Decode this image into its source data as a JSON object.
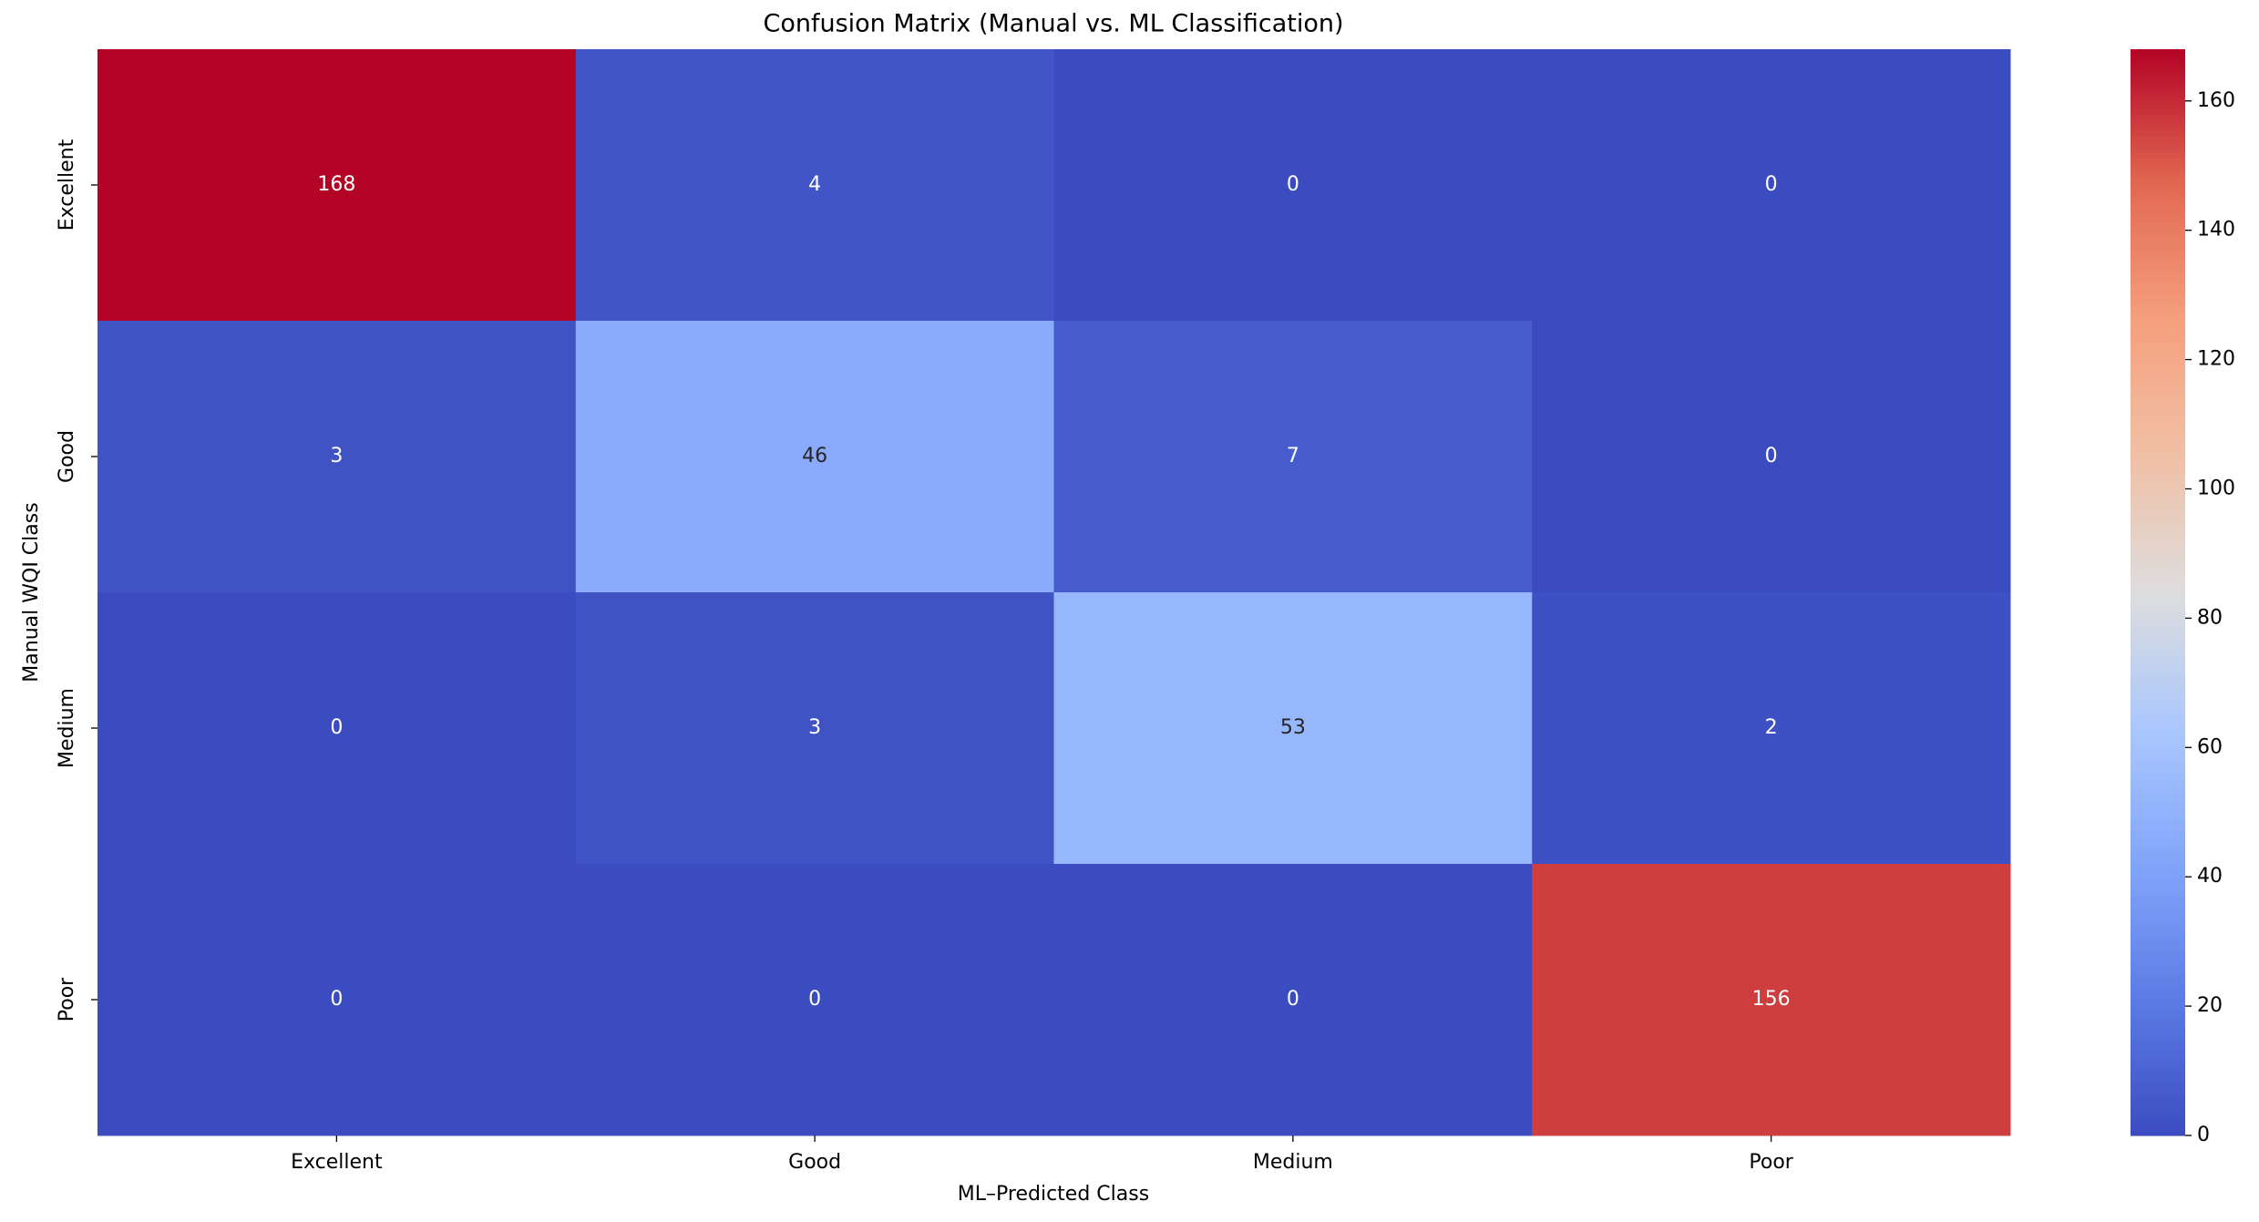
{
  "chart_data": {
    "type": "heatmap",
    "title": "Confusion Matrix (Manual vs. ML Classification)",
    "x_label": "ML–Predicted Class",
    "y_label": "Manual WQI Class",
    "x_categories": [
      "Excellent",
      "Good",
      "Medium",
      "Poor"
    ],
    "y_categories": [
      "Excellent",
      "Good",
      "Medium",
      "Poor"
    ],
    "values": [
      [
        168,
        4,
        0,
        0
      ],
      [
        3,
        46,
        7,
        0
      ],
      [
        0,
        3,
        53,
        2
      ],
      [
        0,
        0,
        0,
        156
      ]
    ],
    "colormap": "coolwarm",
    "clim": [
      0,
      168
    ],
    "cticks": [
      0,
      20,
      40,
      60,
      80,
      100,
      120,
      140,
      160
    ]
  }
}
